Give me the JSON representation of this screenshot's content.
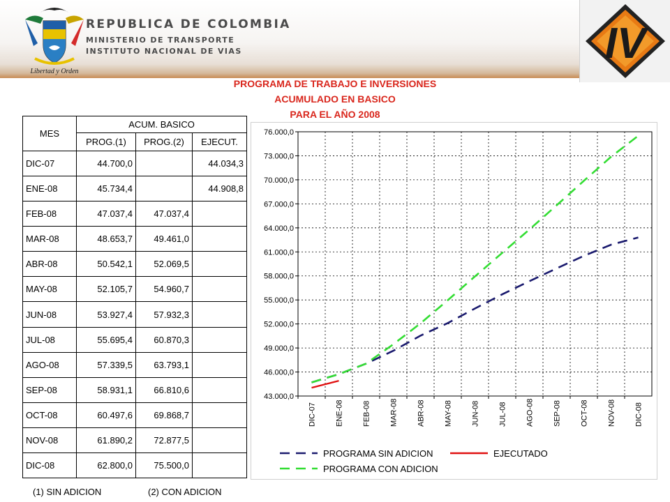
{
  "header": {
    "country": "REPUBLICA DE COLOMBIA",
    "ministry": "MINISTERIO DE TRANSPORTE",
    "institute": "INSTITUTO NACIONAL DE VIAS",
    "motto": "Libertad y Orden",
    "logo_letters": "IV"
  },
  "title_lines": [
    "PROGRAMA DE TRABAJO E INVERSIONES",
    "ACUMULADO EN BASICO",
    "PARA  EL AÑO 2008"
  ],
  "table": {
    "col_mes": "MES",
    "group_header": "ACUM. BASICO",
    "sub_headers": [
      "PROG.(1)",
      "PROG.(2)",
      "EJECUT."
    ],
    "rows": [
      {
        "mes": "DIC-07",
        "p1": "44.700,0",
        "p2": "",
        "ej": "44.034,3"
      },
      {
        "mes": "ENE-08",
        "p1": "45.734,4",
        "p2": "",
        "ej": "44.908,8"
      },
      {
        "mes": "FEB-08",
        "p1": "47.037,4",
        "p2": "47.037,4",
        "ej": ""
      },
      {
        "mes": "MAR-08",
        "p1": "48.653,7",
        "p2": "49.461,0",
        "ej": ""
      },
      {
        "mes": "ABR-08",
        "p1": "50.542,1",
        "p2": "52.069,5",
        "ej": ""
      },
      {
        "mes": "MAY-08",
        "p1": "52.105,7",
        "p2": "54.960,7",
        "ej": ""
      },
      {
        "mes": "JUN-08",
        "p1": "53.927,4",
        "p2": "57.932,3",
        "ej": ""
      },
      {
        "mes": "JUL-08",
        "p1": "55.695,4",
        "p2": "60.870,3",
        "ej": ""
      },
      {
        "mes": "AGO-08",
        "p1": "57.339,5",
        "p2": "63.793,1",
        "ej": ""
      },
      {
        "mes": "SEP-08",
        "p1": "58.931,1",
        "p2": "66.810,6",
        "ej": ""
      },
      {
        "mes": "OCT-08",
        "p1": "60.497,6",
        "p2": "69.868,7",
        "ej": ""
      },
      {
        "mes": "NOV-08",
        "p1": "61.890,2",
        "p2": "72.877,5",
        "ej": ""
      },
      {
        "mes": "DIC-08",
        "p1": "62.800,0",
        "p2": "75.500,0",
        "ej": ""
      }
    ]
  },
  "footnotes": {
    "note1": "(1) SIN ADICION",
    "note2": "(2) CON ADICION"
  },
  "colors": {
    "title_red": "#d9261c",
    "series_sin": "#1a1a6e",
    "series_ejec": "#e01010",
    "series_con": "#33dd33"
  },
  "chart_data": {
    "type": "line",
    "categories": [
      "DIC-07",
      "ENE-08",
      "FEB-08",
      "MAR-08",
      "ABR-08",
      "MAY-08",
      "JUN-08",
      "JUL-08",
      "AGO-08",
      "SEP-08",
      "OCT-08",
      "NOV-08",
      "DIC-08"
    ],
    "ylim": [
      43000,
      76000
    ],
    "yticks": [
      "43.000,0",
      "46.000,0",
      "49.000,0",
      "52.000,0",
      "55.000,0",
      "58.000,0",
      "61.000,0",
      "64.000,0",
      "67.000,0",
      "70.000,0",
      "73.000,0",
      "76.000,0"
    ],
    "grid": true,
    "legend_position": "bottom",
    "series": [
      {
        "name": "PROGRAMA SIN ADICION",
        "style": "dashed",
        "color": "#1a1a6e",
        "values": [
          44700.0,
          45734.4,
          47037.4,
          48653.7,
          50542.1,
          52105.7,
          53927.4,
          55695.4,
          57339.5,
          58931.1,
          60497.6,
          61890.2,
          62800.0
        ]
      },
      {
        "name": "EJECUTADO",
        "style": "solid",
        "color": "#e01010",
        "values": [
          44034.3,
          44908.8,
          null,
          null,
          null,
          null,
          null,
          null,
          null,
          null,
          null,
          null,
          null
        ]
      },
      {
        "name": "PROGRAMA CON ADICION",
        "style": "dashed",
        "color": "#33dd33",
        "values": [
          44700.0,
          45734.4,
          47037.4,
          49461.0,
          52069.5,
          54960.7,
          57932.3,
          60870.3,
          63793.1,
          66810.6,
          69868.7,
          72877.5,
          75500.0
        ]
      }
    ]
  }
}
